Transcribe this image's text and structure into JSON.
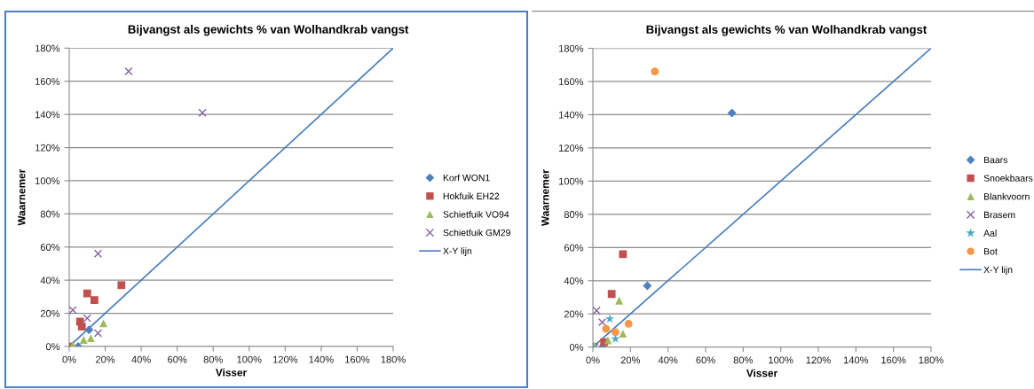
{
  "chart_data": [
    {
      "type": "scatter",
      "title": "Bijvangst als gewichts % van Wolhandkrab vangst",
      "xlabel": "Visser",
      "ylabel": "Waarnemer",
      "xlim": [
        0,
        180
      ],
      "ylim": [
        0,
        180
      ],
      "xticks": [
        {
          "value": 0,
          "label": "0%"
        },
        {
          "value": 20,
          "label": "20%"
        },
        {
          "value": 40,
          "label": "40%"
        },
        {
          "value": 60,
          "label": "60%"
        },
        {
          "value": 80,
          "label": "80%"
        },
        {
          "value": 100,
          "label": "100%"
        },
        {
          "value": 120,
          "label": "120%"
        },
        {
          "value": 140,
          "label": "140%"
        },
        {
          "value": 160,
          "label": "160%"
        },
        {
          "value": 180,
          "label": "180%"
        }
      ],
      "yticks": [
        {
          "value": 0,
          "label": "0%"
        },
        {
          "value": 20,
          "label": "20%"
        },
        {
          "value": 40,
          "label": "40%"
        },
        {
          "value": 60,
          "label": "60%"
        },
        {
          "value": 80,
          "label": "80%"
        },
        {
          "value": 100,
          "label": "100%"
        },
        {
          "value": 120,
          "label": "120%"
        },
        {
          "value": 140,
          "label": "140%"
        },
        {
          "value": 160,
          "label": "160%"
        },
        {
          "value": 180,
          "label": "180%"
        }
      ],
      "grid": "y",
      "legend": "right",
      "series": [
        {
          "name": "Korf WON1",
          "color": "#4f81bd",
          "marker": "diamond",
          "x": [
            11,
            5
          ],
          "values": [
            10,
            0
          ]
        },
        {
          "name": "Hokfuik EH22",
          "color": "#c0504d",
          "marker": "square",
          "x": [
            29,
            10,
            14,
            6,
            7,
            0
          ],
          "values": [
            37,
            32,
            28,
            15,
            12,
            0
          ]
        },
        {
          "name": "Schietfuik VO94",
          "color": "#9bbb59",
          "marker": "triangle",
          "x": [
            19,
            12,
            8,
            2
          ],
          "values": [
            14,
            5,
            4,
            1
          ]
        },
        {
          "name": "Schietfuik GM29",
          "color": "#8064a2",
          "marker": "cross",
          "x": [
            33,
            74,
            16,
            2,
            10,
            16
          ],
          "values": [
            166,
            141,
            56,
            22,
            17,
            8
          ]
        },
        {
          "name": "X-Y lijn",
          "type": "line",
          "color": "#4a7ebb",
          "marker": "none",
          "x": [
            0,
            180
          ],
          "values": [
            0,
            180
          ]
        }
      ]
    },
    {
      "type": "scatter",
      "title": "Bijvangst als gewichts % van Wolhandkrab vangst",
      "xlabel": "Visser",
      "ylabel": "Waarnemer",
      "xlim": [
        0,
        180
      ],
      "ylim": [
        0,
        180
      ],
      "xticks": [
        {
          "value": 0,
          "label": "0%"
        },
        {
          "value": 20,
          "label": "20%"
        },
        {
          "value": 40,
          "label": "40%"
        },
        {
          "value": 60,
          "label": "60%"
        },
        {
          "value": 80,
          "label": "80%"
        },
        {
          "value": 100,
          "label": "100%"
        },
        {
          "value": 120,
          "label": "120%"
        },
        {
          "value": 140,
          "label": "140%"
        },
        {
          "value": 160,
          "label": "160%"
        },
        {
          "value": 180,
          "label": "180%"
        }
      ],
      "yticks": [
        {
          "value": 0,
          "label": "0%"
        },
        {
          "value": 20,
          "label": "20%"
        },
        {
          "value": 40,
          "label": "40%"
        },
        {
          "value": 60,
          "label": "60%"
        },
        {
          "value": 80,
          "label": "80%"
        },
        {
          "value": 100,
          "label": "100%"
        },
        {
          "value": 120,
          "label": "120%"
        },
        {
          "value": 140,
          "label": "140%"
        },
        {
          "value": 160,
          "label": "160%"
        },
        {
          "value": 180,
          "label": "180%"
        }
      ],
      "grid": "y",
      "legend": "right",
      "series": [
        {
          "name": "Baars",
          "color": "#4f81bd",
          "marker": "diamond",
          "x": [
            74,
            29,
            5
          ],
          "values": [
            141,
            37,
            0
          ]
        },
        {
          "name": "Snoekbaars",
          "color": "#c0504d",
          "marker": "square",
          "x": [
            16,
            10,
            6,
            0
          ],
          "values": [
            56,
            32,
            3,
            0
          ]
        },
        {
          "name": "Blankvoorn",
          "color": "#9bbb59",
          "marker": "triangle",
          "x": [
            14,
            16,
            8,
            1
          ],
          "values": [
            28,
            8,
            4,
            1
          ]
        },
        {
          "name": "Brasem",
          "color": "#8064a2",
          "marker": "cross",
          "x": [
            2,
            5,
            1
          ],
          "values": [
            22,
            15,
            0
          ]
        },
        {
          "name": "Aal",
          "color": "#4bacc6",
          "marker": "star",
          "x": [
            9,
            12,
            0
          ],
          "values": [
            17,
            5,
            0
          ]
        },
        {
          "name": "Bot",
          "color": "#f79646",
          "marker": "circle",
          "x": [
            33,
            19,
            7,
            12
          ],
          "values": [
            166,
            14,
            11,
            9
          ]
        },
        {
          "name": "X-Y lijn",
          "type": "line",
          "color": "#4a7ebb",
          "marker": "none",
          "x": [
            0,
            180
          ],
          "values": [
            0,
            180
          ]
        }
      ]
    }
  ]
}
